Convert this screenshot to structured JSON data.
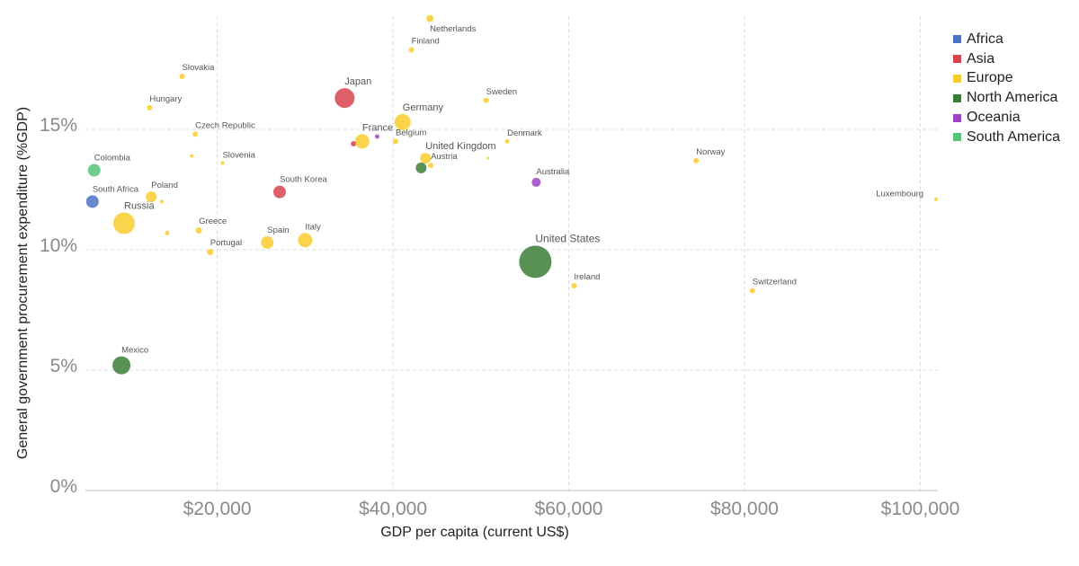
{
  "chart_data": {
    "type": "scatter",
    "title": "",
    "xlabel": "GDP per capita (current US$)",
    "ylabel": "General government procurement expenditure (%GDP)",
    "xlim": [
      5000,
      102000
    ],
    "ylim": [
      0,
      19.7
    ],
    "xticks": [
      20000,
      40000,
      60000,
      80000,
      100000
    ],
    "xtick_labels": [
      "$20,000",
      "$40,000",
      "$60,000",
      "$80,000",
      "$100,000"
    ],
    "yticks": [
      0,
      5,
      10,
      15
    ],
    "ytick_labels": [
      "0%",
      "5%",
      "10%",
      "15%"
    ],
    "grid": true,
    "legend_position": "top-right",
    "bubble_size_encoded": true,
    "regions": [
      {
        "name": "Africa",
        "color": "#4c72c4"
      },
      {
        "name": "Asia",
        "color": "#d9434f"
      },
      {
        "name": "Europe",
        "color": "#f9cc2d"
      },
      {
        "name": "North America",
        "color": "#3c7d36"
      },
      {
        "name": "Oceania",
        "color": "#9b45c4"
      },
      {
        "name": "South America",
        "color": "#57c37a"
      }
    ],
    "points": [
      {
        "label": "Netherlands",
        "region": "Europe",
        "x": 44200,
        "y": 19.6,
        "r": 4,
        "label_size": 9.5,
        "label_pos": "below"
      },
      {
        "label": "Finland",
        "region": "Europe",
        "x": 42100,
        "y": 18.3,
        "r": 3,
        "label_size": 9.5,
        "label_pos": "above"
      },
      {
        "label": "Slovakia",
        "region": "Europe",
        "x": 16000,
        "y": 17.2,
        "r": 3,
        "label_size": 9.5,
        "label_pos": "above"
      },
      {
        "label": "Japan",
        "region": "Asia",
        "x": 34500,
        "y": 16.3,
        "r": 11,
        "label_size": 11,
        "label_pos": "above"
      },
      {
        "label": "Sweden",
        "region": "Europe",
        "x": 50600,
        "y": 16.2,
        "r": 3,
        "label_size": 9.5,
        "label_pos": "above"
      },
      {
        "label": "Hungary",
        "region": "Europe",
        "x": 12300,
        "y": 15.9,
        "r": 3,
        "label_size": 9.5,
        "label_pos": "above"
      },
      {
        "label": "Germany",
        "region": "Europe",
        "x": 41100,
        "y": 15.3,
        "r": 9,
        "label_size": 11,
        "label_pos": "above"
      },
      {
        "label": "Czech Republic",
        "region": "Europe",
        "x": 17500,
        "y": 14.8,
        "r": 3,
        "label_size": 9.5,
        "label_pos": "above"
      },
      {
        "label": "France",
        "region": "Europe",
        "x": 36500,
        "y": 14.5,
        "r": 8,
        "label_size": 11,
        "label_pos": "above"
      },
      {
        "label": "Belgium",
        "region": "Europe",
        "x": 40300,
        "y": 14.5,
        "r": 3,
        "label_size": 9.5,
        "label_pos": "above"
      },
      {
        "label": "Denmark",
        "region": "Europe",
        "x": 53000,
        "y": 14.5,
        "r": 2.5,
        "label_size": 9.5,
        "label_pos": "above"
      },
      {
        "label": "",
        "region": "Asia",
        "x": 35500,
        "y": 14.4,
        "r": 3
      },
      {
        "label": "",
        "region": "Oceania",
        "x": 38200,
        "y": 14.7,
        "r": 2.5
      },
      {
        "label": "",
        "region": "Europe",
        "x": 17100,
        "y": 13.9,
        "r": 2
      },
      {
        "label": "",
        "region": "Europe",
        "x": 50800,
        "y": 13.8,
        "r": 1.5
      },
      {
        "label": "United Kingdom",
        "region": "Europe",
        "x": 43700,
        "y": 13.8,
        "r": 6,
        "label_size": 11,
        "label_pos": "above"
      },
      {
        "label": "Norway",
        "region": "Europe",
        "x": 74500,
        "y": 13.7,
        "r": 3,
        "label_size": 9.5,
        "label_pos": "above"
      },
      {
        "label": "Slovenia",
        "region": "Europe",
        "x": 20600,
        "y": 13.6,
        "r": 2,
        "label_size": 9.5,
        "label_pos": "above"
      },
      {
        "label": "Austria",
        "region": "Europe",
        "x": 44300,
        "y": 13.5,
        "r": 3,
        "label_size": 9.5,
        "label_pos": "above"
      },
      {
        "label": "Colombia",
        "region": "South America",
        "x": 6000,
        "y": 13.3,
        "r": 7,
        "label_size": 9.5,
        "label_pos": "above"
      },
      {
        "label": "",
        "region": "North America",
        "x": 43200,
        "y": 13.4,
        "r": 6
      },
      {
        "label": "Australia",
        "region": "Oceania",
        "x": 56300,
        "y": 12.8,
        "r": 5,
        "label_size": 9.5,
        "label_pos": "above"
      },
      {
        "label": "South Korea",
        "region": "Asia",
        "x": 27100,
        "y": 12.4,
        "r": 7,
        "label_size": 9.5,
        "label_pos": "above"
      },
      {
        "label": "Luxembourg",
        "region": "Europe",
        "x": 101800,
        "y": 12.1,
        "r": 2,
        "label_size": 9.5,
        "label_pos": "left"
      },
      {
        "label": "Poland",
        "region": "Europe",
        "x": 12500,
        "y": 12.2,
        "r": 6,
        "label_size": 9.5,
        "label_pos": "above"
      },
      {
        "label": "",
        "region": "Europe",
        "x": 13700,
        "y": 12.0,
        "r": 2
      },
      {
        "label": "South Africa",
        "region": "Africa",
        "x": 5800,
        "y": 12.0,
        "r": 7,
        "label_size": 9.5,
        "label_pos": "above"
      },
      {
        "label": "Russia",
        "region": "Europe",
        "x": 9400,
        "y": 11.1,
        "r": 12,
        "label_size": 11,
        "label_pos": "above"
      },
      {
        "label": "Greece",
        "region": "Europe",
        "x": 17900,
        "y": 10.8,
        "r": 3.5,
        "label_size": 9.5,
        "label_pos": "above"
      },
      {
        "label": "",
        "region": "Europe",
        "x": 14300,
        "y": 10.7,
        "r": 2.5
      },
      {
        "label": "Italy",
        "region": "Europe",
        "x": 30000,
        "y": 10.4,
        "r": 8,
        "label_size": 9.5,
        "label_pos": "above"
      },
      {
        "label": "Spain",
        "region": "Europe",
        "x": 25700,
        "y": 10.3,
        "r": 7,
        "label_size": 9.5,
        "label_pos": "above"
      },
      {
        "label": "Portugal",
        "region": "Europe",
        "x": 19200,
        "y": 9.9,
        "r": 3.5,
        "label_size": 9.5,
        "label_pos": "above"
      },
      {
        "label": "United States",
        "region": "North America",
        "x": 56200,
        "y": 9.5,
        "r": 18,
        "label_size": 12,
        "label_pos": "above"
      },
      {
        "label": "Ireland",
        "region": "Europe",
        "x": 60600,
        "y": 8.5,
        "r": 3,
        "label_size": 9.5,
        "label_pos": "above"
      },
      {
        "label": "Switzerland",
        "region": "Europe",
        "x": 80900,
        "y": 8.3,
        "r": 3,
        "label_size": 9.5,
        "label_pos": "above"
      },
      {
        "label": "Mexico",
        "region": "North America",
        "x": 9100,
        "y": 5.2,
        "r": 10,
        "label_size": 9.5,
        "label_pos": "above"
      }
    ]
  }
}
